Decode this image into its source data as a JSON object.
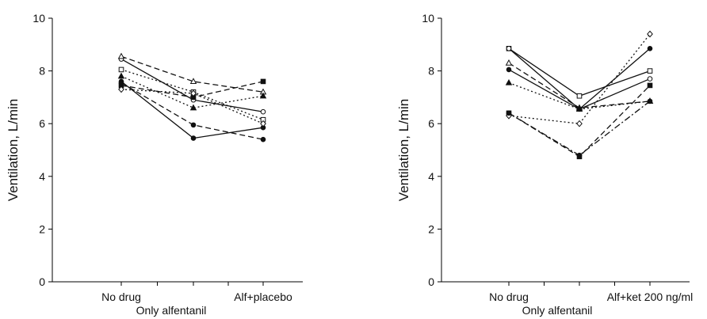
{
  "chart_data": [
    {
      "type": "line",
      "ylabel": "Ventilation, L/min",
      "xlabel": "Only alfentanil",
      "categories": [
        "No drug",
        "",
        "Alf+placebo"
      ],
      "ylim": [
        0,
        10
      ],
      "yticks": [
        "0",
        "2",
        "4",
        "6",
        "8",
        "10"
      ],
      "series": [
        {
          "style": "solid",
          "marker": "circle-open",
          "values": [
            8.45,
            6.9,
            6.45
          ]
        },
        {
          "style": "solid",
          "marker": "circle-filled",
          "values": [
            7.6,
            5.45,
            5.85
          ]
        },
        {
          "style": "dashed",
          "marker": "triangle-open",
          "values": [
            8.55,
            7.6,
            7.2
          ]
        },
        {
          "style": "dashed",
          "marker": "square-filled",
          "values": [
            7.45,
            7.0,
            7.6
          ]
        },
        {
          "style": "dashed",
          "marker": "circle-filled",
          "values": [
            7.55,
            5.95,
            5.4
          ]
        },
        {
          "style": "dotted",
          "marker": "square-open",
          "values": [
            8.05,
            7.2,
            6.15
          ]
        },
        {
          "style": "dotted",
          "marker": "triangle-filled",
          "values": [
            7.8,
            6.6,
            7.05
          ]
        },
        {
          "style": "dotted",
          "marker": "diamond-open",
          "values": [
            7.3,
            7.15,
            6.0
          ]
        }
      ]
    },
    {
      "type": "line",
      "ylabel": "Ventilation, L/min",
      "xlabel": "Only alfentanil",
      "categories": [
        "No drug",
        "",
        "Alf+ket 200 ng/ml"
      ],
      "ylim": [
        0,
        10
      ],
      "yticks": [
        "0",
        "2",
        "4",
        "6",
        "8",
        "10"
      ],
      "series": [
        {
          "style": "solid",
          "marker": "square-open",
          "values": [
            8.85,
            7.05,
            8.0
          ]
        },
        {
          "style": "solid",
          "marker": "circle-open",
          "values": [
            8.85,
            6.55,
            7.7
          ]
        },
        {
          "style": "solid",
          "marker": "circle-filled",
          "values": [
            8.05,
            6.55,
            8.85
          ]
        },
        {
          "style": "dashed",
          "marker": "triangle-open",
          "values": [
            8.3,
            6.6,
            6.85
          ]
        },
        {
          "style": "dashed",
          "marker": "square-filled",
          "values": [
            6.4,
            4.75,
            7.45
          ]
        },
        {
          "style": "dotted",
          "marker": "triangle-filled",
          "values": [
            7.55,
            6.55,
            6.85
          ]
        },
        {
          "style": "dotted",
          "marker": "diamond-open",
          "values": [
            6.3,
            6.0,
            9.4
          ]
        },
        {
          "style": "dashdot",
          "marker": "circle-filled",
          "values": [
            6.4,
            4.8,
            6.85
          ]
        }
      ]
    }
  ]
}
